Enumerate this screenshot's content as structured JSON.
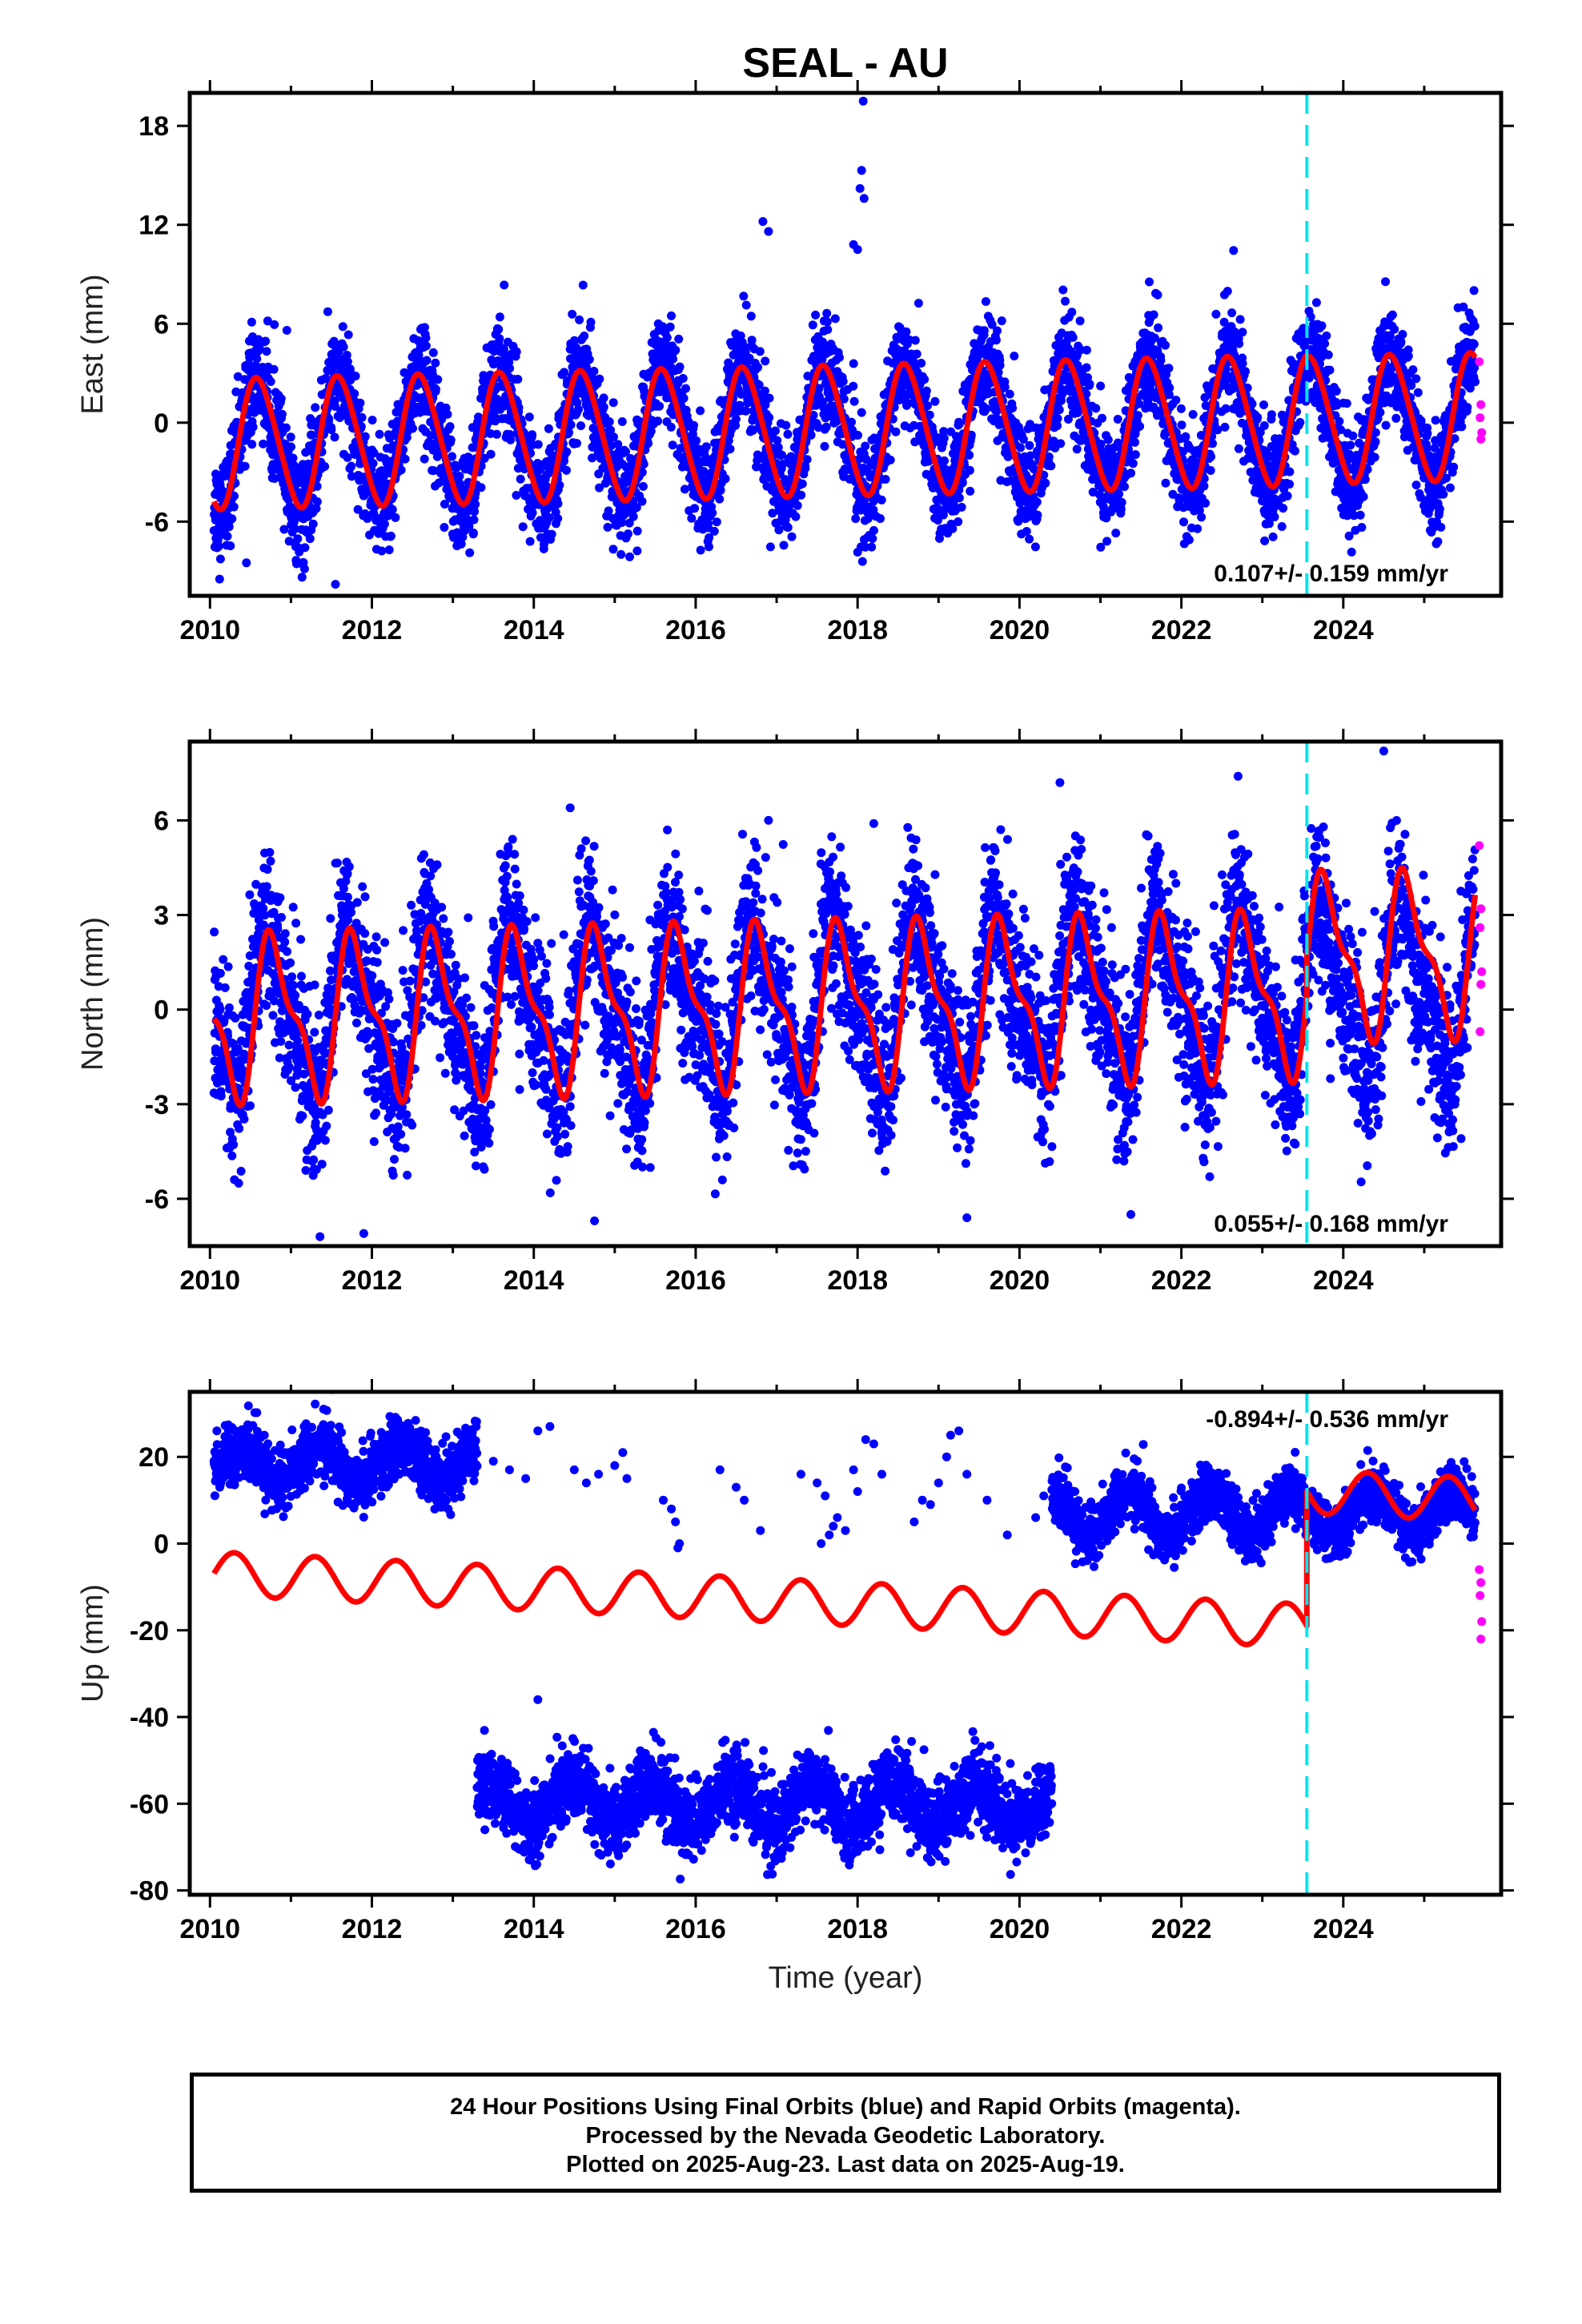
{
  "title": "SEAL - AU",
  "xlabel": "Time (year)",
  "footer": {
    "line1": "24 Hour Positions Using Final Orbits (blue) and Rapid Orbits (magenta).",
    "line2": "Processed by the Nevada Geodetic Laboratory.",
    "line3": "Plotted on 2025-Aug-23. Last data on 2025-Aug-19."
  },
  "colors": {
    "final_orbits": "#0000ff",
    "rapid_orbits": "#ff00ff",
    "model_fit": "#ff0000",
    "equipment_change": "#00e5ee"
  },
  "chart_data": [
    {
      "type": "scatter",
      "panel": "east",
      "ylabel": "East (mm)",
      "xlim": [
        2009.75,
        2025.95
      ],
      "ylim": [
        -10.5,
        20.0
      ],
      "xticks": [
        2010,
        2012,
        2014,
        2016,
        2018,
        2020,
        2022,
        2024
      ],
      "yticks": [
        -6,
        0,
        6,
        12,
        18
      ],
      "rate_text": "0.107+/- 0.159 mm/yr",
      "rate_position": "bottom-right",
      "equipment_change_year": 2023.55,
      "data_start": 2010.05,
      "data_end": 2025.63,
      "series": [
        {
          "name": "Final Orbits",
          "color": "#0000ff",
          "model": {
            "offset": -0.5,
            "trend": 0.107,
            "annual_amp": 3.9,
            "annual_phase": 0.35,
            "semiannual_amp": 0.3,
            "noise": 1.6
          },
          "outliers": [
            [
              2016.83,
              12.2
            ],
            [
              2016.9,
              11.6
            ],
            [
              2018.07,
              19.5
            ],
            [
              2018.05,
              15.3
            ],
            [
              2018.03,
              14.2
            ],
            [
              2018.08,
              13.6
            ],
            [
              2017.95,
              10.8
            ],
            [
              2018.0,
              10.5
            ],
            [
              2010.95,
              5.6
            ],
            [
              2010.45,
              -8.5
            ],
            [
              2011.55,
              -9.8
            ]
          ]
        },
        {
          "name": "Rapid Orbits",
          "color": "#ff00ff",
          "points": [
            [
              2025.68,
              3.7
            ],
            [
              2025.7,
              1.1
            ],
            [
              2025.69,
              0.3
            ],
            [
              2025.71,
              -0.6
            ],
            [
              2025.7,
              -1.0
            ]
          ]
        }
      ],
      "fit": {
        "color": "#ff0000",
        "model": {
          "offset": -0.45,
          "trend": 0.107,
          "annual_amp": 3.9,
          "annual_phase": 0.35,
          "semiannual_amp": 0.4,
          "step_at": 2023.55,
          "step": 0.0,
          "annual_amp_after": 3.8
        }
      }
    },
    {
      "type": "scatter",
      "panel": "north",
      "ylabel": "North (mm)",
      "xlim": [
        2009.75,
        2025.95
      ],
      "ylim": [
        -7.5,
        8.5
      ],
      "xticks": [
        2010,
        2012,
        2014,
        2016,
        2018,
        2020,
        2022,
        2024
      ],
      "yticks": [
        -6,
        -3,
        0,
        3,
        6
      ],
      "rate_text": "0.055+/- 0.168 mm/yr",
      "rate_position": "bottom-right",
      "equipment_change_year": 2023.55,
      "data_start": 2010.05,
      "data_end": 2025.63,
      "series": [
        {
          "name": "Final Orbits",
          "color": "#0000ff",
          "model": {
            "offset": 0.2,
            "trend": 0.055,
            "annual_amp": 2.4,
            "annual_phase": 0.5,
            "semiannual_amp": 0.8,
            "noise": 1.3
          },
          "outliers": [
            [
              2011.9,
              -7.1
            ],
            [
              2014.45,
              6.4
            ],
            [
              2016.9,
              6.0
            ],
            [
              2018.2,
              5.9
            ],
            [
              2020.5,
              7.2
            ],
            [
              2022.7,
              7.4
            ],
            [
              2024.5,
              8.2
            ],
            [
              2022.35,
              -5.3
            ],
            [
              2019.35,
              -6.6
            ],
            [
              2014.75,
              -6.7
            ]
          ]
        },
        {
          "name": "Rapid Orbits",
          "color": "#ff00ff",
          "points": [
            [
              2025.68,
              5.2
            ],
            [
              2025.7,
              3.2
            ],
            [
              2025.69,
              2.6
            ],
            [
              2025.71,
              1.2
            ],
            [
              2025.7,
              0.8
            ],
            [
              2025.69,
              -0.7
            ]
          ]
        }
      ],
      "fit": {
        "color": "#ff0000",
        "model": {
          "offset": 0.15,
          "trend": 0.055,
          "annual_amp": 2.3,
          "annual_phase": 0.55,
          "semiannual_amp": 0.9,
          "step_at": 2023.55,
          "step": 1.2,
          "annual_amp_after": 2.3
        }
      }
    },
    {
      "type": "scatter",
      "panel": "up",
      "ylabel": "Up (mm)",
      "xlim": [
        2009.75,
        2025.95
      ],
      "ylim": [
        -81,
        35
      ],
      "xticks": [
        2010,
        2012,
        2014,
        2016,
        2018,
        2020,
        2022,
        2024
      ],
      "yticks": [
        -80,
        -60,
        -40,
        -20,
        0,
        20
      ],
      "rate_text": "-0.894+/- 0.536 mm/yr",
      "rate_position": "top-right",
      "equipment_change_year": 2023.55,
      "data_start": 2010.05,
      "data_end": 2025.63,
      "series": [
        {
          "name": "Final Orbits (upper cluster 2010-2013.3)",
          "color": "#0000ff",
          "segment": [
            2010.05,
            2013.3
          ],
          "model": {
            "offset": 18.5,
            "trend": 0.0,
            "annual_amp": 4.0,
            "annual_phase": 0.1,
            "semiannual_amp": 0.0,
            "noise": 3.5
          }
        },
        {
          "name": "Final Orbits (lower cluster 2013.3-2020.4)",
          "color": "#0000ff",
          "segment": [
            2013.3,
            2020.4
          ],
          "model": {
            "offset": -60.0,
            "trend": 0.0,
            "annual_amp": 5.0,
            "annual_phase": 0.2,
            "semiannual_amp": 0.0,
            "noise": 4.2
          }
        },
        {
          "name": "Final Orbits (upper cluster 2020.4-2025.6)",
          "color": "#0000ff",
          "segment": [
            2020.4,
            2025.63
          ],
          "model": {
            "offset": 7.0,
            "trend": 0.0,
            "annual_amp": 5.0,
            "annual_phase": 0.1,
            "semiannual_amp": 0.0,
            "noise": 3.2
          }
        },
        {
          "name": "Final Orbits (sparse)",
          "color": "#0000ff",
          "points": [
            [
              2013.5,
              19
            ],
            [
              2013.7,
              17
            ],
            [
              2013.9,
              15
            ],
            [
              2014.05,
              26
            ],
            [
              2014.2,
              27
            ],
            [
              2014.5,
              17
            ],
            [
              2014.65,
              14
            ],
            [
              2014.8,
              16
            ],
            [
              2015.0,
              18
            ],
            [
              2015.1,
              21
            ],
            [
              2015.15,
              15
            ],
            [
              2015.6,
              10
            ],
            [
              2015.7,
              8
            ],
            [
              2015.75,
              5
            ],
            [
              2015.8,
              0
            ],
            [
              2015.78,
              -1
            ],
            [
              2016.3,
              17
            ],
            [
              2016.5,
              13
            ],
            [
              2016.6,
              10
            ],
            [
              2016.8,
              3
            ],
            [
              2017.3,
              16
            ],
            [
              2017.5,
              14
            ],
            [
              2017.6,
              11
            ],
            [
              2017.75,
              6
            ],
            [
              2017.85,
              3
            ],
            [
              2017.95,
              17
            ],
            [
              2018.0,
              12
            ],
            [
              2018.1,
              24
            ],
            [
              2018.2,
              23
            ],
            [
              2018.3,
              16
            ],
            [
              2017.65,
              2
            ],
            [
              2017.7,
              4
            ],
            [
              2017.55,
              0
            ],
            [
              2018.7,
              5
            ],
            [
              2018.8,
              10
            ],
            [
              2018.9,
              9
            ],
            [
              2019.0,
              14
            ],
            [
              2019.1,
              20
            ],
            [
              2019.15,
              25
            ],
            [
              2019.25,
              26
            ],
            [
              2019.35,
              16
            ],
            [
              2019.6,
              10
            ],
            [
              2019.85,
              2
            ],
            [
              2020.2,
              6
            ],
            [
              2020.3,
              11
            ],
            [
              2014.05,
              -36
            ]
          ]
        },
        {
          "name": "Rapid Orbits",
          "color": "#ff00ff",
          "points": [
            [
              2025.68,
              -6
            ],
            [
              2025.7,
              -9
            ],
            [
              2025.69,
              -12
            ],
            [
              2025.71,
              -18
            ],
            [
              2025.7,
              -22
            ]
          ]
        }
      ],
      "fit": {
        "color": "#ff0000",
        "model": {
          "offset": -14.0,
          "trend": -0.894,
          "annual_amp": 5.0,
          "annual_phase": 0.05,
          "semiannual_amp": 0.0,
          "step_at": 2023.55,
          "step": 31.0,
          "annual_amp_after": 5.0
        }
      }
    }
  ]
}
